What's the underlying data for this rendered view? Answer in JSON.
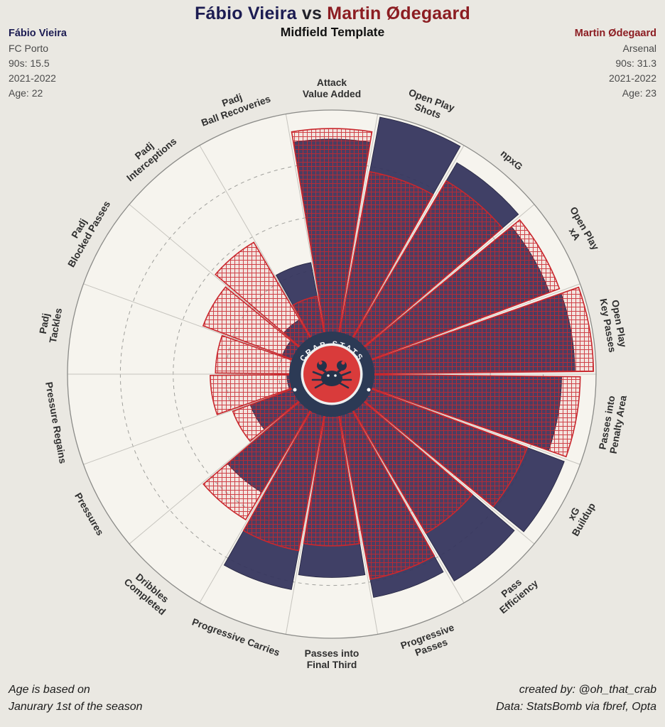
{
  "header": {
    "title_left": "Fábio Vieira",
    "title_vs": "vs",
    "title_right": "Martin Ødegaard",
    "subtitle": "Midfield Template"
  },
  "players": {
    "left": {
      "name": "Fábio Vieira",
      "team": "FC Porto",
      "nineties": "90s: 15.5",
      "season": "2021-2022",
      "age": "Age: 22",
      "color": "#1c1c52"
    },
    "right": {
      "name": "Martin Ødegaard",
      "team": "Arsenal",
      "nineties": "90s: 31.3",
      "season": "2021-2022",
      "age": "Age: 23",
      "color": "#8c1d22"
    }
  },
  "logo": {
    "text": "CRAB STATS"
  },
  "footer": {
    "left_line1": "Age is based on",
    "left_line2": "Janurary 1st of the season",
    "right_line1": "created by: @oh_that_crab",
    "right_line2": "Data: StatsBomb via fbref, Opta"
  },
  "chart_data": {
    "type": "pizza",
    "title": "Fábio Vieira vs Martin Ødegaard — Midfield Template",
    "scale": [
      0,
      100
    ],
    "rings": [
      20,
      40,
      60,
      80,
      100
    ],
    "grid": "dashed",
    "params": [
      "Attack\nValue Added",
      "Open Play\nShots",
      "npxG",
      "Open Play\nxA",
      "Open Play\nKey Passes",
      "Passes into\nPenalty Area",
      "xG\nBuildup",
      "Pass\nEfficiency",
      "Progressive\nPasses",
      "Passes into\nFinal Third",
      "Progressive Carries",
      "Dribbles\nCompleted",
      "Pressures",
      "Pressure Regains",
      "Padj\nTackles",
      "Padj\nBlocked Passes",
      "Padj\nInterceptions",
      "Padj\nBall Recoveries"
    ],
    "series": [
      {
        "name": "Fábio Vieira",
        "style": "solid",
        "color": "#36365e",
        "values": [
          89,
          99,
          93,
          88,
          92,
          87,
          94,
          91,
          86,
          77,
          83,
          52,
          33,
          17,
          13,
          20,
          24,
          43
        ]
      },
      {
        "name": "Martin Ødegaard",
        "style": "crosshatch",
        "color": "#c9282e",
        "values": [
          93,
          78,
          85,
          92,
          99,
          94,
          79,
          70,
          79,
          65,
          68,
          64,
          40,
          46,
          44,
          52,
          58,
          30
        ]
      }
    ]
  }
}
